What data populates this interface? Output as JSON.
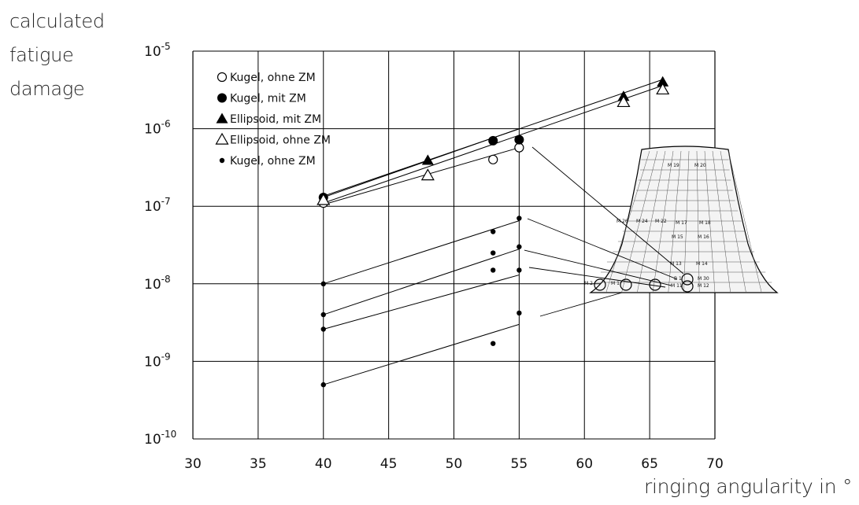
{
  "chart_data": {
    "type": "scatter",
    "ylabel": [
      "calculated",
      "fatigue",
      "damage"
    ],
    "xlabel": "ringing angularity in °",
    "xlim": [
      30,
      70
    ],
    "ylim": [
      1e-10,
      1e-05
    ],
    "yscale": "log",
    "x_ticks": [
      "30",
      "35",
      "40",
      "45",
      "50",
      "55",
      "60",
      "65",
      "70"
    ],
    "y_ticks": [
      {
        "base": "10",
        "exp": "-5"
      },
      {
        "base": "10",
        "exp": "-6"
      },
      {
        "base": "10",
        "exp": "-7"
      },
      {
        "base": "10",
        "exp": "-8"
      },
      {
        "base": "10",
        "exp": "-9"
      },
      {
        "base": "10",
        "exp": "-10"
      }
    ],
    "grid": true,
    "legend_position": "top-left",
    "series": [
      {
        "name": "Kugel, ohne ZM",
        "marker": "open-circle",
        "points": [
          [
            40,
            1.1e-07
          ],
          [
            53,
            4e-07
          ],
          [
            55,
            5.7e-07
          ]
        ],
        "fit": [
          [
            40,
            1.05e-07
          ],
          [
            55,
            5.7e-07
          ]
        ]
      },
      {
        "name": "Kugel, mit ZM",
        "marker": "filled-circle",
        "points": [
          [
            40,
            1.3e-07
          ],
          [
            53,
            7e-07
          ],
          [
            55,
            7.2e-07
          ]
        ],
        "fit": [
          [
            40,
            1.3e-07
          ],
          [
            55,
            1e-06
          ]
        ]
      },
      {
        "name": "Ellipsoid, mit ZM",
        "marker": "filled-triangle",
        "points": [
          [
            48,
            3.9e-07
          ],
          [
            63,
            2.6e-06
          ],
          [
            66,
            4e-06
          ]
        ],
        "fit": [
          [
            40,
            1.35e-07
          ],
          [
            66,
            4.3e-06
          ]
        ]
      },
      {
        "name": "Ellipsoid, ohne ZM",
        "marker": "open-triangle",
        "points": [
          [
            40,
            1.2e-07
          ],
          [
            48,
            2.5e-07
          ],
          [
            63,
            2.2e-06
          ],
          [
            66,
            3.2e-06
          ]
        ],
        "fit": [
          [
            40,
            1.1e-07
          ],
          [
            66,
            3.6e-06
          ]
        ]
      },
      {
        "name": "Kugel, ohne ZM",
        "marker": "small-dot",
        "points": [
          [
            40,
            1e-08
          ],
          [
            53,
            4.7e-08
          ],
          [
            55,
            7e-08
          ],
          [
            40,
            4e-09
          ],
          [
            53,
            2.5e-08
          ],
          [
            55,
            3e-08
          ],
          [
            40,
            2.6e-09
          ],
          [
            53,
            1.5e-08
          ],
          [
            55,
            1.5e-08
          ],
          [
            40,
            5e-10
          ],
          [
            53,
            1.7e-09
          ],
          [
            55,
            4.2e-09
          ]
        ],
        "fits": [
          [
            [
              40,
              1e-08
            ],
            [
              55,
              6.5e-08
            ]
          ],
          [
            [
              40,
              4e-09
            ],
            [
              55,
              2.8e-08
            ]
          ],
          [
            [
              40,
              2.6e-09
            ],
            [
              55,
              1.3e-08
            ]
          ],
          [
            [
              40,
              5e-10
            ],
            [
              55,
              3e-09
            ]
          ]
        ]
      }
    ]
  },
  "bell": {
    "gauge_labels": [
      "M 19",
      "M 20",
      "M 26",
      "M 24",
      "M 22",
      "M 17",
      "M 18",
      "M 15",
      "M 16",
      "M 13",
      "M 14",
      "B 1",
      "M 30",
      "M 2",
      "M 1",
      "M 11",
      "M 12"
    ]
  },
  "colors": {
    "ink": "#000000",
    "grid": "#000000",
    "background": "#ffffff",
    "bell_fill": "#f4f4f4"
  }
}
